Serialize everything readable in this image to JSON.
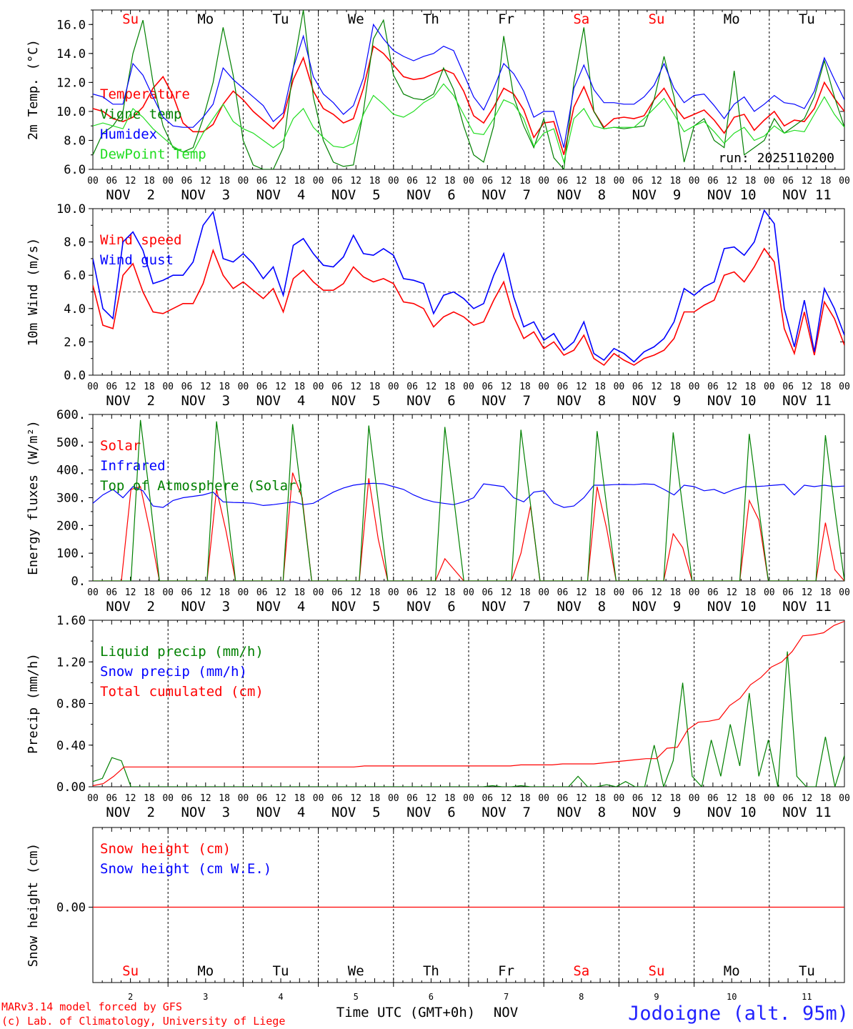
{
  "chart_data": [
    {
      "type": "line",
      "ylabel": "2m Temp. (°C)",
      "ylim": [
        6.0,
        17.0
      ],
      "yticks": [
        "6.0",
        "8.0",
        "10.0",
        "12.0",
        "14.0",
        "16.0"
      ],
      "annotation": "run: 2025110200",
      "series": [
        {
          "name": "Temperature",
          "color": "#ff0000",
          "values": [
            10.2,
            10.0,
            9.5,
            9.3,
            9.6,
            10.3,
            11.6,
            12.4,
            11.1,
            9.2,
            8.6,
            8.6,
            9.1,
            10.5,
            11.4,
            10.8,
            10.0,
            9.4,
            8.8,
            9.6,
            12.2,
            13.7,
            11.4,
            10.2,
            9.8,
            9.2,
            9.5,
            11.6,
            14.5,
            14.0,
            13.2,
            12.4,
            12.2,
            12.3,
            12.6,
            12.9,
            12.6,
            11.4,
            9.7,
            9.2,
            10.3,
            11.6,
            11.2,
            10.1,
            8.2,
            9.2,
            9.3,
            7.0,
            10.3,
            11.7,
            10.0,
            8.9,
            9.5,
            9.6,
            9.5,
            9.7,
            10.8,
            11.6,
            10.4,
            9.5,
            9.8,
            10.1,
            9.4,
            8.5,
            9.6,
            9.8,
            8.7,
            9.4,
            10.0,
            9.0,
            9.4,
            9.3,
            10.2,
            12.0,
            10.9,
            10.0
          ]
        },
        {
          "name": "Vigne temp",
          "color": "#008000",
          "values": [
            7.0,
            8.5,
            9.0,
            10.0,
            14.0,
            16.3,
            12.0,
            9.0,
            7.5,
            7.2,
            7.5,
            9.5,
            12.0,
            15.8,
            12.5,
            8.0,
            6.3,
            6.0,
            6.0,
            7.5,
            13.0,
            17.0,
            11.0,
            8.0,
            6.5,
            6.2,
            6.3,
            10.0,
            15.0,
            16.3,
            12.5,
            11.2,
            10.9,
            10.8,
            11.2,
            13.0,
            11.5,
            9.0,
            7.0,
            6.5,
            9.0,
            15.2,
            11.0,
            9.0,
            7.5,
            9.5,
            6.8,
            6.0,
            12.0,
            15.8,
            10.0,
            8.8,
            8.9,
            8.8,
            8.9,
            9.0,
            10.8,
            13.8,
            11.0,
            6.5,
            9.0,
            9.5,
            8.0,
            7.5,
            12.8,
            7.0,
            7.5,
            8.0,
            9.5,
            8.5,
            9.0,
            9.5,
            11.0,
            13.5,
            11.0,
            8.9
          ]
        },
        {
          "name": "Humidex",
          "color": "#0000ff",
          "values": [
            11.2,
            11.0,
            10.5,
            10.5,
            13.3,
            12.5,
            11.0,
            9.6,
            9.0,
            8.9,
            8.9,
            9.6,
            10.5,
            13.0,
            12.2,
            11.6,
            11.0,
            10.4,
            9.3,
            9.9,
            13.0,
            15.2,
            12.4,
            11.2,
            10.6,
            9.8,
            10.4,
            12.3,
            16.0,
            15.0,
            14.2,
            13.8,
            13.5,
            13.8,
            14.0,
            14.5,
            14.2,
            12.6,
            11.0,
            10.1,
            11.6,
            13.3,
            12.6,
            11.4,
            9.6,
            10.0,
            10.0,
            7.5,
            11.6,
            13.2,
            11.5,
            10.6,
            10.6,
            10.5,
            10.5,
            11.0,
            11.8,
            13.3,
            11.6,
            10.6,
            11.1,
            11.2,
            10.4,
            9.5,
            10.5,
            11.0,
            10.0,
            10.5,
            11.1,
            10.6,
            10.5,
            10.2,
            11.4,
            13.7,
            12.2,
            10.8
          ]
        },
        {
          "name": "DewPoint Temp",
          "color": "#22dd22",
          "values": [
            9.0,
            9.2,
            9.0,
            8.8,
            10.2,
            9.6,
            8.8,
            8.2,
            7.6,
            7.2,
            7.2,
            8.5,
            9.5,
            10.5,
            9.3,
            8.8,
            8.5,
            8.0,
            7.5,
            8.0,
            9.5,
            10.2,
            8.9,
            8.2,
            7.6,
            7.5,
            7.8,
            9.8,
            11.1,
            10.5,
            9.8,
            9.6,
            10.0,
            10.6,
            11.0,
            11.9,
            11.1,
            9.8,
            8.5,
            8.4,
            9.5,
            10.8,
            10.5,
            9.5,
            7.6,
            8.5,
            8.8,
            6.5,
            9.5,
            10.2,
            9.0,
            8.8,
            8.9,
            8.9,
            8.9,
            9.5,
            10.2,
            10.9,
            9.8,
            8.6,
            9.0,
            9.3,
            8.6,
            7.8,
            8.5,
            8.9,
            8.0,
            8.3,
            9.0,
            8.5,
            8.7,
            8.6,
            9.8,
            11.0,
            9.8,
            8.9
          ]
        }
      ]
    },
    {
      "type": "line",
      "ylabel": "10m Wind (m/s)",
      "ylim": [
        0.0,
        10.0
      ],
      "yticks": [
        "0.0",
        "2.0",
        "4.0",
        "6.0",
        "8.0",
        "10.0"
      ],
      "reference_line": 5.0,
      "series": [
        {
          "name": "Wind speed",
          "color": "#ff0000",
          "values": [
            5.4,
            3.0,
            2.8,
            6.0,
            6.7,
            5.0,
            3.8,
            3.7,
            4.0,
            4.3,
            4.3,
            5.5,
            7.5,
            6.0,
            5.2,
            5.6,
            5.1,
            4.6,
            5.2,
            3.8,
            5.8,
            6.3,
            5.6,
            5.1,
            5.1,
            5.5,
            6.5,
            5.9,
            5.6,
            5.8,
            5.5,
            4.4,
            4.3,
            4.0,
            2.9,
            3.5,
            3.8,
            3.5,
            3.0,
            3.2,
            4.5,
            5.6,
            3.5,
            2.2,
            2.6,
            1.6,
            2.0,
            1.2,
            1.5,
            2.4,
            1.0,
            0.6,
            1.3,
            0.9,
            0.6,
            1.0,
            1.2,
            1.5,
            2.2,
            3.8,
            3.8,
            4.2,
            4.5,
            6.0,
            6.2,
            5.6,
            6.5,
            7.6,
            6.8,
            2.8,
            1.3,
            3.8,
            1.2,
            4.4,
            3.4,
            1.8
          ]
        },
        {
          "name": "Wind gust",
          "color": "#0000ff",
          "values": [
            7.0,
            4.0,
            3.4,
            8.0,
            8.6,
            7.5,
            5.5,
            5.7,
            6.0,
            6.0,
            6.8,
            9.0,
            9.8,
            7.0,
            6.8,
            7.3,
            6.7,
            5.8,
            6.5,
            4.8,
            7.8,
            8.2,
            7.3,
            6.6,
            6.5,
            7.1,
            8.4,
            7.3,
            7.2,
            7.6,
            7.2,
            5.8,
            5.7,
            5.5,
            3.7,
            4.8,
            5.0,
            4.6,
            4.0,
            4.3,
            6.0,
            7.3,
            4.7,
            2.9,
            3.2,
            2.1,
            2.5,
            1.5,
            2.0,
            3.2,
            1.3,
            0.9,
            1.6,
            1.3,
            0.8,
            1.4,
            1.7,
            2.2,
            3.2,
            5.2,
            4.8,
            5.3,
            5.6,
            7.6,
            7.7,
            7.2,
            8.0,
            9.9,
            9.1,
            4.0,
            1.7,
            4.5,
            1.4,
            5.2,
            4.0,
            2.4
          ]
        }
      ]
    },
    {
      "type": "line",
      "ylabel": "Energy fluxes (W/m²)",
      "ylim": [
        0,
        600
      ],
      "yticks": [
        "0.",
        "100.",
        "200.",
        "300.",
        "400.",
        "500.",
        "600."
      ],
      "series": [
        {
          "name": "Solar",
          "color": "#ff0000",
          "values": [
            0,
            0,
            0,
            0,
            330,
            340,
            180,
            0,
            0,
            0,
            0,
            0,
            0,
            330,
            180,
            0,
            0,
            0,
            0,
            0,
            0,
            390,
            300,
            0,
            0,
            0,
            0,
            0,
            0,
            370,
            150,
            0,
            0,
            0,
            0,
            0,
            0,
            80,
            40,
            0,
            0,
            0,
            0,
            0,
            0,
            100,
            270,
            0,
            0,
            0,
            0,
            0,
            0,
            340,
            190,
            0,
            0,
            0,
            0,
            0,
            0,
            170,
            120,
            0,
            0,
            0,
            0,
            0,
            0,
            290,
            220,
            0,
            0,
            0,
            0,
            0,
            0,
            210,
            40,
            0
          ]
        },
        {
          "name": "Infrared",
          "color": "#0000ff",
          "values": [
            280,
            310,
            330,
            300,
            340,
            325,
            270,
            265,
            290,
            300,
            305,
            310,
            320,
            285,
            283,
            282,
            280,
            272,
            275,
            280,
            285,
            275,
            280,
            300,
            320,
            335,
            345,
            350,
            352,
            350,
            340,
            330,
            310,
            295,
            285,
            280,
            275,
            285,
            300,
            350,
            345,
            340,
            300,
            285,
            320,
            325,
            280,
            265,
            270,
            300,
            345,
            345,
            347,
            348,
            347,
            350,
            348,
            330,
            310,
            345,
            340,
            325,
            330,
            315,
            330,
            340,
            340,
            342,
            345,
            348,
            310,
            345,
            340,
            345,
            340,
            342
          ]
        },
        {
          "name": "Top of Atmosphere (Solar)",
          "color": "#008000",
          "values": [
            0,
            0,
            0,
            0,
            0,
            580,
            300,
            0,
            0,
            0,
            0,
            0,
            0,
            575,
            300,
            0,
            0,
            0,
            0,
            0,
            0,
            565,
            290,
            0,
            0,
            0,
            0,
            0,
            0,
            560,
            285,
            0,
            0,
            0,
            0,
            0,
            0,
            555,
            280,
            0,
            0,
            0,
            0,
            0,
            0,
            545,
            275,
            0,
            0,
            0,
            0,
            0,
            0,
            540,
            270,
            0,
            0,
            0,
            0,
            0,
            0,
            535,
            265,
            0,
            0,
            0,
            0,
            0,
            0,
            530,
            260,
            0,
            0,
            0,
            0,
            0,
            0,
            525,
            255,
            0
          ]
        }
      ]
    },
    {
      "type": "line",
      "ylabel": "Precip (mm/h)",
      "ylim": [
        0.0,
        1.6
      ],
      "yticks": [
        "0.00",
        "0.40",
        "0.80",
        "1.20",
        "1.60"
      ],
      "series": [
        {
          "name": "Liquid precip (mm/h)",
          "color": "#008000",
          "values": [
            0.05,
            0.08,
            0.28,
            0.25,
            0.0,
            0.0,
            0.0,
            0.0,
            0.0,
            0.0,
            0.0,
            0.0,
            0.0,
            0.0,
            0.0,
            0.0,
            0.0,
            0.0,
            0.0,
            0.0,
            0.0,
            0.0,
            0.0,
            0.0,
            0.0,
            0.0,
            0.0,
            0.0,
            0.0,
            0.0,
            0.0,
            0.0,
            0.0,
            0.0,
            0.0,
            0.0,
            0.0,
            0.0,
            0.0,
            0.0,
            0.0,
            0.0,
            0.01,
            0.0,
            0.0,
            0.01,
            0.0,
            0.0,
            0.0,
            0.0,
            0.0,
            0.1,
            0.0,
            0.0,
            0.02,
            0.0,
            0.05,
            0.0,
            0.0,
            0.4,
            0.0,
            0.25,
            1.0,
            0.1,
            0.0,
            0.45,
            0.1,
            0.6,
            0.2,
            0.9,
            0.1,
            0.45,
            0.0,
            1.3,
            0.1,
            0.0,
            0.0,
            0.48,
            0.0,
            0.3
          ]
        },
        {
          "name": "Snow precip (mm/h)",
          "color": "#0000ff",
          "values": []
        },
        {
          "name": "Total cumulated (cm)",
          "color": "#ff0000",
          "values": [
            0.01,
            0.03,
            0.1,
            0.19,
            0.19,
            0.19,
            0.19,
            0.19,
            0.19,
            0.19,
            0.19,
            0.19,
            0.19,
            0.19,
            0.19,
            0.19,
            0.19,
            0.19,
            0.19,
            0.19,
            0.19,
            0.19,
            0.19,
            0.19,
            0.19,
            0.19,
            0.2,
            0.2,
            0.2,
            0.2,
            0.2,
            0.2,
            0.2,
            0.2,
            0.2,
            0.2,
            0.2,
            0.2,
            0.2,
            0.2,
            0.2,
            0.21,
            0.21,
            0.21,
            0.21,
            0.22,
            0.22,
            0.22,
            0.22,
            0.23,
            0.24,
            0.25,
            0.26,
            0.27,
            0.27,
            0.37,
            0.38,
            0.55,
            0.62,
            0.63,
            0.65,
            0.78,
            0.85,
            0.98,
            1.05,
            1.15,
            1.2,
            1.3,
            1.45,
            1.46,
            1.48,
            1.55,
            1.59
          ]
        }
      ]
    },
    {
      "type": "line",
      "ylabel": "Snow height (cm)",
      "yticks": [
        "0.00"
      ],
      "series": [
        {
          "name": "Snow height (cm)",
          "color": "#ff0000",
          "values": [
            0,
            0
          ]
        },
        {
          "name": "Snow height (cm W.E.)",
          "color": "#0000ff",
          "values": []
        }
      ]
    }
  ],
  "x_axis": {
    "hour_ticks": [
      "00",
      "06",
      "12",
      "18"
    ],
    "final_tick": "00",
    "dates": [
      "NOV  2",
      "NOV  3",
      "NOV  4",
      "NOV  5",
      "NOV  6",
      "NOV  7",
      "NOV  8",
      "NOV  9",
      "NOV 10",
      "NOV 11"
    ],
    "weekdays": [
      "Su",
      "Mo",
      "Tu",
      "We",
      "Th",
      "Fr",
      "Sa",
      "Su",
      "Mo",
      "Tu"
    ],
    "weekend_color": "#ff0000",
    "day_numbers": [
      "2",
      "3",
      "4",
      "5",
      "6",
      "7",
      "8",
      "9",
      "10",
      "11"
    ],
    "xlabel": "Time UTC (GMT+0h)",
    "month": "NOV"
  },
  "footer": {
    "credit_line1": "MARv3.14 model forced by GFS",
    "credit_line2": "(c) Lab. of Climatology, University of Liege",
    "location": "Jodoigne (alt. 95m)"
  }
}
